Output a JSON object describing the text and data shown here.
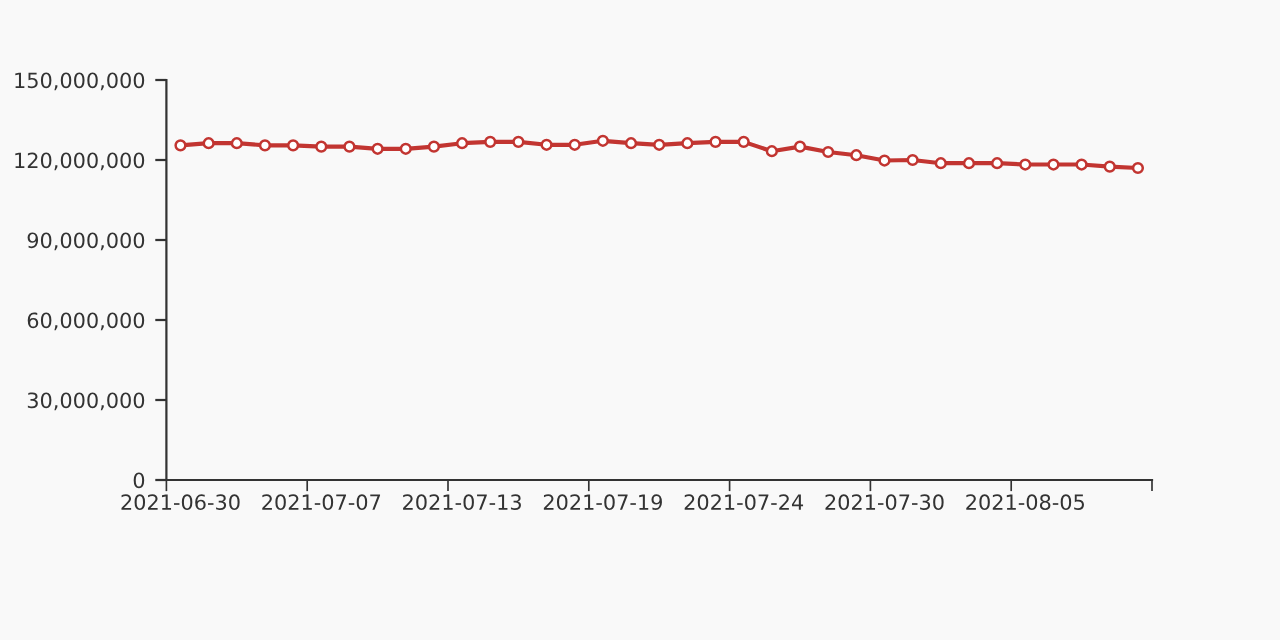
{
  "chart_data": {
    "type": "line",
    "categories": [
      "2021-06-30",
      null,
      null,
      null,
      null,
      "2021-07-07",
      null,
      null,
      null,
      null,
      "2021-07-13",
      null,
      null,
      null,
      null,
      "2021-07-19",
      null,
      null,
      null,
      null,
      "2021-07-24",
      null,
      null,
      null,
      null,
      "2021-07-30",
      null,
      null,
      null,
      null,
      "2021-08-05",
      null,
      null,
      null,
      null
    ],
    "series": [
      {
        "color": "#c23531",
        "values": [
          125500000,
          126300000,
          126300000,
          125500000,
          125500000,
          125000000,
          125000000,
          124200000,
          124200000,
          125000000,
          126300000,
          126800000,
          126800000,
          125700000,
          125700000,
          127200000,
          126300000,
          125700000,
          126300000,
          126800000,
          126800000,
          123300000,
          125000000,
          123000000,
          121800000,
          119800000,
          120000000,
          118800000,
          118800000,
          118800000,
          118300000,
          118300000,
          118300000,
          117500000,
          117000000
        ]
      }
    ],
    "ylim": [
      0,
      150000000
    ],
    "yticks": [
      {
        "value": 0,
        "label": "0"
      },
      {
        "value": 30000000,
        "label": "30,000,000"
      },
      {
        "value": 60000000,
        "label": "60,000,000"
      },
      {
        "value": 90000000,
        "label": "90,000,000"
      },
      {
        "value": 120000000,
        "label": "120,000,000"
      },
      {
        "value": 150000000,
        "label": "150,000,000"
      }
    ],
    "grid": false,
    "legend": false,
    "marker": "circle",
    "line_style": "solid"
  }
}
